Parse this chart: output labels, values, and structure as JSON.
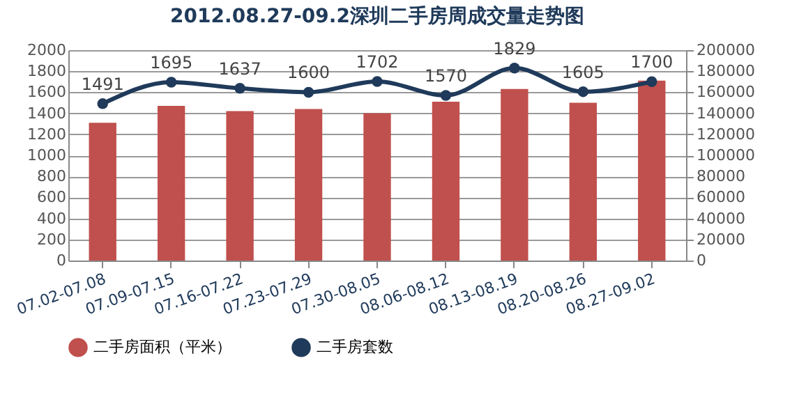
{
  "chart_data": {
    "type": "bar",
    "title": "2012.08.27-09.2深圳二手房周成交量走势图",
    "categories": [
      "07.02-07.08",
      "07.09-07.15",
      "07.16-07.22",
      "07.23-07.29",
      "07.30-08.05",
      "08.06-08.12",
      "08.13-08.19",
      "08.20-08.26",
      "08.27-09.02"
    ],
    "series": [
      {
        "name": "二手房面积（平米）",
        "axis": "y2",
        "color": "#c0504d",
        "values": [
          131000,
          147000,
          142000,
          144000,
          140000,
          151000,
          163000,
          150000,
          171000
        ]
      },
      {
        "name": "二手房套数",
        "type": "line",
        "color": "#1f3a5a",
        "values": [
          1491,
          1695,
          1637,
          1600,
          1702,
          1570,
          1829,
          1605,
          1700
        ],
        "data_labels": true
      }
    ],
    "ylim": [
      0,
      2000
    ],
    "yticks": [
      0,
      200,
      400,
      600,
      800,
      1000,
      1200,
      1400,
      1600,
      1800,
      2000
    ],
    "y2lim": [
      0,
      200000
    ],
    "y2ticks": [
      0,
      20000,
      40000,
      60000,
      80000,
      100000,
      120000,
      140000,
      160000,
      180000,
      200000
    ],
    "grid": "y",
    "legend": "bottom",
    "marker": "circle",
    "line_style": "solid"
  }
}
